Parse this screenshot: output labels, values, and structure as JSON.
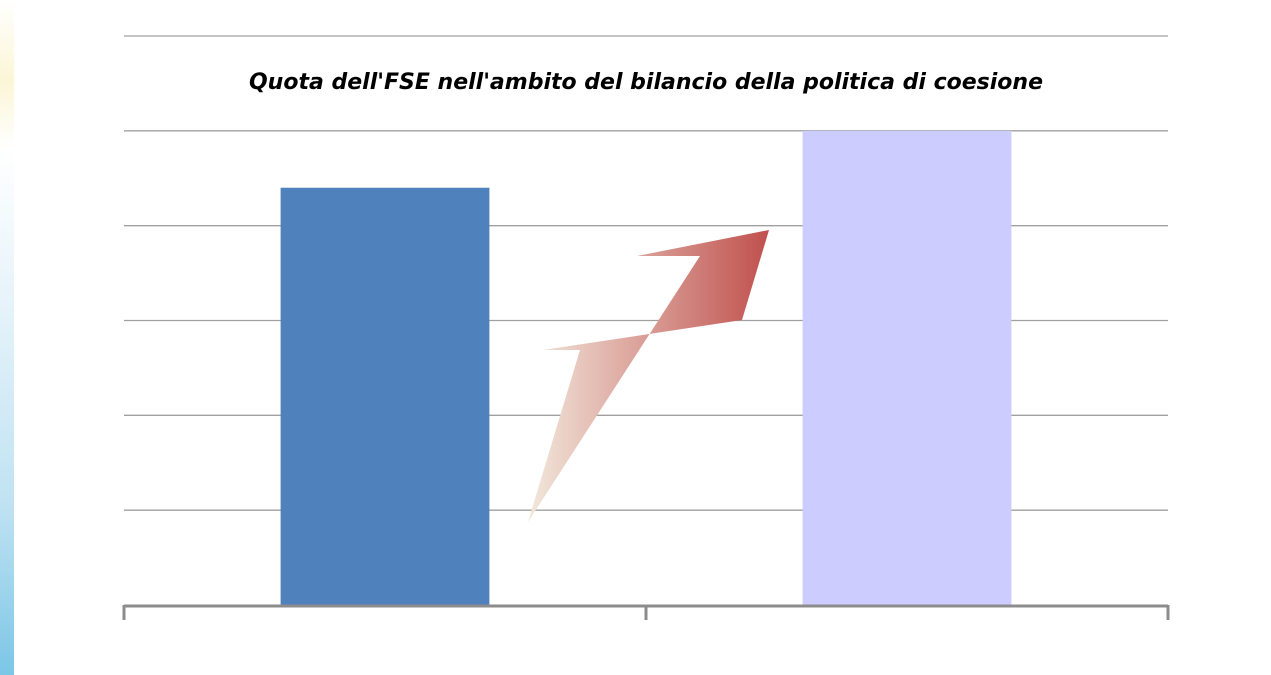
{
  "chart_data": {
    "type": "bar",
    "title": "Quota dell'FSE nell'ambito del bilancio della politica di coesione",
    "categories": [
      "",
      ""
    ],
    "values": [
      4.4,
      5
    ],
    "bar_colors": [
      "#4f81bd",
      "#ccccff"
    ],
    "ylim": [
      0,
      6
    ],
    "grid": true,
    "xlabel": "",
    "ylabel": "",
    "annotation": "upward trend arrow"
  },
  "colors": {
    "grid": "#a0a0a0",
    "axis": "#8c8c8c",
    "arrow_start": "#f2e8dc",
    "arrow_end": "#c0504d"
  }
}
